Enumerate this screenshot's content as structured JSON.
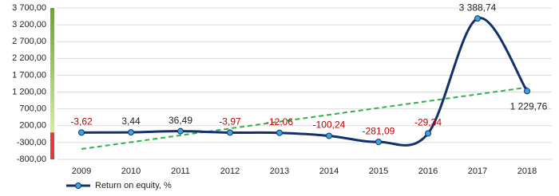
{
  "chart_data": {
    "type": "line",
    "categories": [
      "2009",
      "2010",
      "2011",
      "2012",
      "2013",
      "2014",
      "2015",
      "2016",
      "2017",
      "2018"
    ],
    "series": [
      {
        "name": "Return on equity, %",
        "color": "#13306b",
        "marker_color": "#3aa6dd",
        "values": [
          -3.62,
          3.44,
          36.49,
          -3.97,
          -12.06,
          -100.24,
          -281.09,
          -29.34,
          3388.74,
          1229.76
        ],
        "value_labels": [
          "-3,62",
          "3,44",
          "36,49",
          "-3,97",
          "-12,06",
          "-100,24",
          "-281,09",
          "-29,34",
          "3 388,74",
          "1 229,76"
        ]
      }
    ],
    "ylim": [
      -800,
      3700
    ],
    "yticks": [
      {
        "value": -800,
        "label": "-800,00"
      },
      {
        "value": -300,
        "label": "-300,00"
      },
      {
        "value": 200,
        "label": "200,00"
      },
      {
        "value": 700,
        "label": "700,00"
      },
      {
        "value": 1200,
        "label": "1 200,00"
      },
      {
        "value": 1700,
        "label": "1 700,00"
      },
      {
        "value": 2200,
        "label": "2 200,00"
      },
      {
        "value": 2700,
        "label": "2 700,00"
      },
      {
        "value": 3200,
        "label": "3 200,00"
      },
      {
        "value": 3700,
        "label": "3 700,00"
      }
    ],
    "grid": true,
    "smooth": true,
    "trendline": true,
    "trendline_color": "#2db34a",
    "negative_label_color": "#c00000",
    "legend": "bottom-left"
  }
}
